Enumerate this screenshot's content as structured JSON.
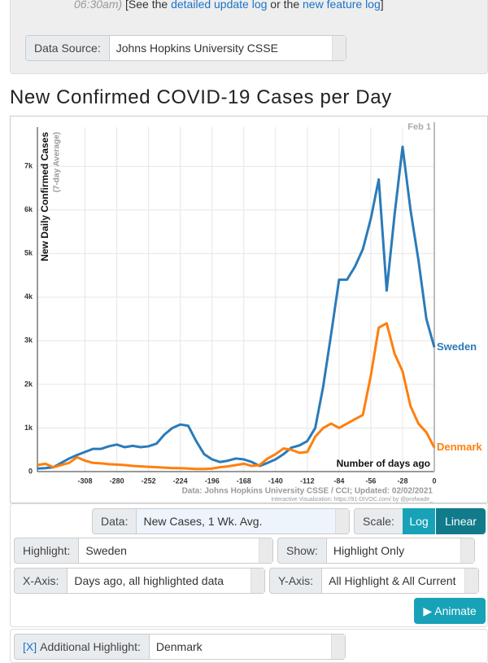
{
  "header": {
    "time": "06:30am)",
    "text_a": "[See the ",
    "link_a": "detailed update log",
    "text_b": " or the ",
    "link_b": "new feature log",
    "text_c": "]"
  },
  "data_source": {
    "label": "Data Source:",
    "value": "Johns Hopkins University CSSE"
  },
  "chart_data": {
    "type": "line",
    "title": "New Confirmed COVID-19 Cases per Day",
    "y_label": "New Daily Confirmed Cases",
    "y_sublabel": "(7-day Average)",
    "x_label": "Number of days ago",
    "date_label": "Feb 1",
    "source": "Data: Johns Hopkins University CSSE / CCI; Updated: 02/02/2021",
    "credit": "Interactive Visualization: https://91-DIVOC.com/ by @profwade_",
    "x": [
      -350,
      -343,
      -336,
      -329,
      -322,
      -315,
      -308,
      -301,
      -294,
      -287,
      -280,
      -273,
      -266,
      -259,
      -252,
      -245,
      -238,
      -231,
      -224,
      -217,
      -210,
      -203,
      -196,
      -189,
      -182,
      -175,
      -168,
      -161,
      -154,
      -147,
      -140,
      -133,
      -126,
      -119,
      -112,
      -105,
      -98,
      -91,
      -84,
      -77,
      -70,
      -63,
      -56,
      -49,
      -42,
      -35,
      -28,
      -21,
      -14,
      -7,
      0
    ],
    "series": [
      {
        "name": "Sweden",
        "color": "#2b7bb9",
        "values": [
          70,
          80,
          100,
          200,
          300,
          380,
          450,
          520,
          520,
          580,
          620,
          560,
          590,
          560,
          580,
          640,
          850,
          1000,
          1080,
          1050,
          700,
          400,
          280,
          220,
          250,
          300,
          280,
          220,
          130,
          200,
          280,
          400,
          550,
          600,
          700,
          1000,
          1950,
          3150,
          4400,
          4400,
          4700,
          5100,
          5800,
          6700,
          4150,
          5900,
          7450,
          6000,
          4850,
          3500,
          2850
        ]
      },
      {
        "name": "Denmark",
        "color": "#ff7f0e",
        "values": [
          150,
          180,
          100,
          150,
          200,
          330,
          250,
          200,
          190,
          170,
          160,
          150,
          130,
          120,
          110,
          100,
          90,
          80,
          80,
          70,
          60,
          60,
          70,
          100,
          120,
          150,
          180,
          130,
          150,
          300,
          400,
          530,
          500,
          430,
          450,
          800,
          1000,
          1100,
          1000,
          1100,
          1200,
          1300,
          2200,
          3300,
          3400,
          2700,
          2300,
          1500,
          1100,
          900,
          550
        ]
      }
    ],
    "xlim": [
      -350,
      0
    ],
    "ylim": [
      0,
      7900
    ],
    "xticks": [
      -308,
      -280,
      -252,
      -224,
      -196,
      -168,
      -140,
      -112,
      -84,
      -56,
      -28,
      0
    ],
    "yticks": [
      0,
      {
        "value": 1000,
        "label": "1k"
      },
      {
        "value": 2000,
        "label": "2k"
      },
      {
        "value": 3000,
        "label": "3k"
      },
      {
        "value": 4000,
        "label": "4k"
      },
      {
        "value": 5000,
        "label": "5k"
      },
      {
        "value": 6000,
        "label": "6k"
      },
      {
        "value": 7000,
        "label": "7k"
      }
    ],
    "grid": true
  },
  "controls": {
    "data": {
      "label": "Data:",
      "value": "New Cases, 1 Wk. Avg."
    },
    "scale": {
      "label": "Scale:",
      "log": "Log",
      "linear": "Linear"
    },
    "highlight": {
      "label": "Highlight:",
      "value": "Sweden"
    },
    "show": {
      "label": "Show:",
      "value": "Highlight Only"
    },
    "x_axis": {
      "label": "X-Axis:",
      "value": "Days ago, all highlighted data"
    },
    "y_axis": {
      "label": "Y-Axis:",
      "value": "All Highlight & All Current"
    },
    "animate": "▶ Animate",
    "remove": "[X]",
    "additional": {
      "label": "Additional Highlight:",
      "value": "Denmark"
    }
  }
}
